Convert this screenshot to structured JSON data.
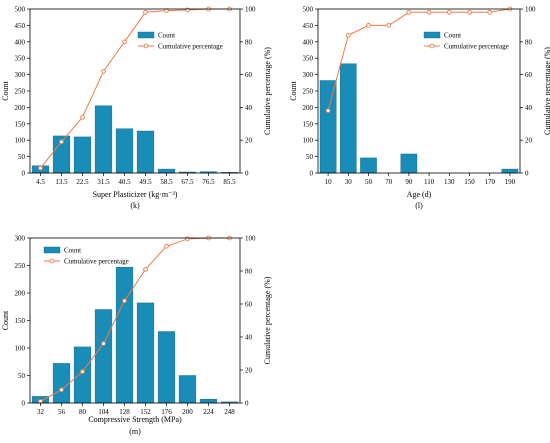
{
  "chart_data": [
    {
      "type": "bar",
      "panel_label": "(k)",
      "xlabel": "Super Plasticizer (kg·m⁻³)",
      "ylabel": "Count",
      "y2label": "Cumulative percentage (%)",
      "categories": [
        "4.5",
        "13.5",
        "22.5",
        "31.5",
        "40.5",
        "49.5",
        "58.5",
        "67.5",
        "76.5",
        "85.5"
      ],
      "ylim": [
        0,
        500
      ],
      "yticks": [
        0,
        50,
        100,
        150,
        200,
        250,
        300,
        350,
        400,
        450,
        500
      ],
      "y2lim": [
        0,
        100
      ],
      "y2ticks": [
        0,
        20,
        40,
        60,
        80,
        100
      ],
      "legend": {
        "position": "top-left",
        "entries": [
          "Count",
          "Cumulative percentage"
        ]
      },
      "colors": {
        "bar": "#1a8cb8",
        "line": "#f07a45"
      },
      "series": [
        {
          "name": "Count",
          "kind": "bar",
          "values": [
            22,
            113,
            110,
            205,
            135,
            128,
            12,
            3,
            4,
            2
          ]
        },
        {
          "name": "Cumulative percentage",
          "kind": "line",
          "axis": "right",
          "values": [
            3,
            19,
            34,
            62,
            80,
            98,
            99,
            99.5,
            100,
            100
          ]
        }
      ]
    },
    {
      "type": "bar",
      "panel_label": "(l)",
      "xlabel": "Age (d)",
      "ylabel": "Count",
      "y2label": "Cumulative percentage (%)",
      "categories": [
        "10",
        "30",
        "50",
        "70",
        "90",
        "110",
        "130",
        "150",
        "170",
        "190"
      ],
      "ylim": [
        0,
        500
      ],
      "yticks": [
        0,
        50,
        100,
        150,
        200,
        250,
        300,
        350,
        400,
        450,
        500
      ],
      "y2lim": [
        0,
        100
      ],
      "y2ticks": [
        0,
        20,
        40,
        60,
        80,
        100
      ],
      "legend": {
        "position": "top-right",
        "entries": [
          "Count",
          "Cumulative percentage"
        ]
      },
      "colors": {
        "bar": "#1a8cb8",
        "line": "#f07a45"
      },
      "series": [
        {
          "name": "Count",
          "kind": "bar",
          "values": [
            282,
            333,
            46,
            0,
            58,
            0,
            0,
            0,
            0,
            12
          ]
        },
        {
          "name": "Cumulative percentage",
          "kind": "line",
          "axis": "right",
          "values": [
            38,
            84,
            90,
            90,
            98,
            98,
            98,
            98,
            98,
            100
          ]
        }
      ]
    },
    {
      "type": "bar",
      "panel_label": "(m)",
      "xlabel": "Compressive Strength (MPa)",
      "ylabel": "Count",
      "y2label": "Cumulative percentage (%)",
      "categories": [
        "32",
        "56",
        "80",
        "104",
        "128",
        "152",
        "176",
        "200",
        "224",
        "248"
      ],
      "ylim": [
        0,
        300
      ],
      "yticks": [
        0,
        50,
        100,
        150,
        200,
        250,
        300
      ],
      "y2lim": [
        0,
        100
      ],
      "y2ticks": [
        0,
        20,
        40,
        60,
        80,
        100
      ],
      "legend": {
        "position": "top-left",
        "entries": [
          "Count",
          "Cumulative percentage"
        ]
      },
      "colors": {
        "bar": "#1a8cb8",
        "line": "#f07a45"
      },
      "series": [
        {
          "name": "Count",
          "kind": "bar",
          "values": [
            12,
            72,
            102,
            170,
            247,
            182,
            130,
            50,
            7,
            2
          ]
        },
        {
          "name": "Cumulative percentage",
          "kind": "line",
          "axis": "right",
          "values": [
            1,
            8,
            19,
            36,
            62,
            81,
            95,
            99.5,
            100,
            100
          ]
        }
      ]
    }
  ]
}
